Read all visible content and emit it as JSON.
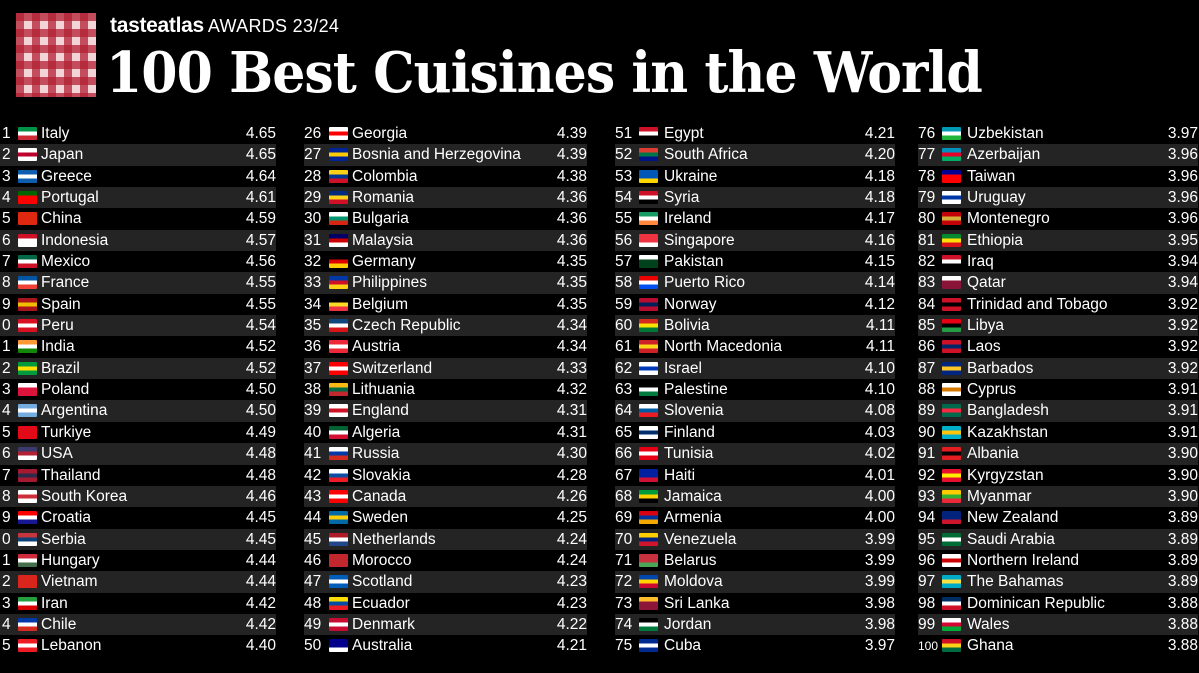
{
  "header": {
    "brand_name": "tasteatlas",
    "awards": "AWARDS 23/24",
    "title": "100 Best Cuisines in the World"
  },
  "columns": [
    [
      {
        "rank": "1",
        "country": "Italy",
        "score": "4.65",
        "flag": [
          "#009246",
          "#ffffff",
          "#ce2b37"
        ]
      },
      {
        "rank": "2",
        "country": "Japan",
        "score": "4.65",
        "flag": [
          "#ffffff",
          "#bc002d",
          "#ffffff"
        ]
      },
      {
        "rank": "3",
        "country": "Greece",
        "score": "4.64",
        "flag": [
          "#0d5eaf",
          "#ffffff",
          "#0d5eaf"
        ]
      },
      {
        "rank": "4",
        "country": "Portugal",
        "score": "4.61",
        "flag": [
          "#006600",
          "#ff0000",
          "#ff0000"
        ]
      },
      {
        "rank": "5",
        "country": "China",
        "score": "4.59",
        "flag": [
          "#de2910",
          "#de2910",
          "#de2910"
        ]
      },
      {
        "rank": "6",
        "country": "Indonesia",
        "score": "4.57",
        "flag": [
          "#ce1126",
          "#ffffff",
          "#ffffff"
        ]
      },
      {
        "rank": "7",
        "country": "Mexico",
        "score": "4.56",
        "flag": [
          "#006847",
          "#ffffff",
          "#ce1126"
        ]
      },
      {
        "rank": "8",
        "country": "France",
        "score": "4.55",
        "flag": [
          "#0055a4",
          "#ffffff",
          "#ef4135"
        ]
      },
      {
        "rank": "9",
        "country": "Spain",
        "score": "4.55",
        "flag": [
          "#aa151b",
          "#f1bf00",
          "#aa151b"
        ]
      },
      {
        "rank": "0",
        "country": "Peru",
        "score": "4.54",
        "flag": [
          "#d91023",
          "#ffffff",
          "#d91023"
        ]
      },
      {
        "rank": "1",
        "country": "India",
        "score": "4.52",
        "flag": [
          "#ff9933",
          "#ffffff",
          "#138808"
        ]
      },
      {
        "rank": "2",
        "country": "Brazil",
        "score": "4.52",
        "flag": [
          "#009c3b",
          "#ffdf00",
          "#009c3b"
        ]
      },
      {
        "rank": "3",
        "country": "Poland",
        "score": "4.50",
        "flag": [
          "#ffffff",
          "#dc143c",
          "#dc143c"
        ]
      },
      {
        "rank": "4",
        "country": "Argentina",
        "score": "4.50",
        "flag": [
          "#74acdf",
          "#ffffff",
          "#74acdf"
        ]
      },
      {
        "rank": "5",
        "country": "Turkiye",
        "score": "4.49",
        "flag": [
          "#e30a17",
          "#e30a17",
          "#e30a17"
        ]
      },
      {
        "rank": "6",
        "country": "USA",
        "score": "4.48",
        "flag": [
          "#3c3b6e",
          "#b22234",
          "#ffffff"
        ]
      },
      {
        "rank": "7",
        "country": "Thailand",
        "score": "4.48",
        "flag": [
          "#a51931",
          "#2d2a4a",
          "#a51931"
        ]
      },
      {
        "rank": "8",
        "country": "South Korea",
        "score": "4.46",
        "flag": [
          "#ffffff",
          "#cd2e3a",
          "#ffffff"
        ]
      },
      {
        "rank": "9",
        "country": "Croatia",
        "score": "4.45",
        "flag": [
          "#ff0000",
          "#ffffff",
          "#171796"
        ]
      },
      {
        "rank": "0",
        "country": "Serbia",
        "score": "4.45",
        "flag": [
          "#c6363c",
          "#0c4076",
          "#ffffff"
        ]
      },
      {
        "rank": "1",
        "country": "Hungary",
        "score": "4.44",
        "flag": [
          "#cd2a3e",
          "#ffffff",
          "#436f4d"
        ]
      },
      {
        "rank": "2",
        "country": "Vietnam",
        "score": "4.44",
        "flag": [
          "#da251d",
          "#da251d",
          "#da251d"
        ]
      },
      {
        "rank": "3",
        "country": "Iran",
        "score": "4.42",
        "flag": [
          "#239f40",
          "#ffffff",
          "#da0000"
        ]
      },
      {
        "rank": "4",
        "country": "Chile",
        "score": "4.42",
        "flag": [
          "#0039a6",
          "#ffffff",
          "#d52b1e"
        ]
      },
      {
        "rank": "5",
        "country": "Lebanon",
        "score": "4.40",
        "flag": [
          "#ed1c24",
          "#ffffff",
          "#ed1c24"
        ]
      }
    ],
    [
      {
        "rank": "26",
        "country": "Georgia",
        "score": "4.39",
        "flag": [
          "#ffffff",
          "#ff0000",
          "#ffffff"
        ]
      },
      {
        "rank": "27",
        "country": "Bosnia and Herzegovina",
        "score": "4.39",
        "flag": [
          "#002395",
          "#fecb00",
          "#002395"
        ]
      },
      {
        "rank": "28",
        "country": "Colombia",
        "score": "4.38",
        "flag": [
          "#fcd116",
          "#003893",
          "#ce1126"
        ]
      },
      {
        "rank": "29",
        "country": "Romania",
        "score": "4.36",
        "flag": [
          "#002b7f",
          "#fcd116",
          "#ce1126"
        ]
      },
      {
        "rank": "30",
        "country": "Bulgaria",
        "score": "4.36",
        "flag": [
          "#ffffff",
          "#00966e",
          "#d62612"
        ]
      },
      {
        "rank": "31",
        "country": "Malaysia",
        "score": "4.36",
        "flag": [
          "#010066",
          "#cc0001",
          "#ffffff"
        ]
      },
      {
        "rank": "32",
        "country": "Germany",
        "score": "4.35",
        "flag": [
          "#000000",
          "#dd0000",
          "#ffce00"
        ]
      },
      {
        "rank": "33",
        "country": "Philippines",
        "score": "4.35",
        "flag": [
          "#0038a8",
          "#ce1126",
          "#fcd116"
        ]
      },
      {
        "rank": "34",
        "country": "Belgium",
        "score": "4.35",
        "flag": [
          "#000000",
          "#fdda24",
          "#ef3340"
        ]
      },
      {
        "rank": "35",
        "country": "Czech Republic",
        "score": "4.34",
        "flag": [
          "#11457e",
          "#ffffff",
          "#d7141a"
        ]
      },
      {
        "rank": "36",
        "country": "Austria",
        "score": "4.34",
        "flag": [
          "#ed2939",
          "#ffffff",
          "#ed2939"
        ]
      },
      {
        "rank": "37",
        "country": "Switzerland",
        "score": "4.33",
        "flag": [
          "#ff0000",
          "#ffffff",
          "#ff0000"
        ]
      },
      {
        "rank": "38",
        "country": "Lithuania",
        "score": "4.32",
        "flag": [
          "#fdb913",
          "#006a44",
          "#c1272d"
        ]
      },
      {
        "rank": "39",
        "country": "England",
        "score": "4.31",
        "flag": [
          "#ffffff",
          "#ce1124",
          "#ffffff"
        ]
      },
      {
        "rank": "40",
        "country": "Algeria",
        "score": "4.31",
        "flag": [
          "#006233",
          "#ffffff",
          "#d21034"
        ]
      },
      {
        "rank": "41",
        "country": "Russia",
        "score": "4.30",
        "flag": [
          "#ffffff",
          "#0039a6",
          "#d52b1e"
        ]
      },
      {
        "rank": "42",
        "country": "Slovakia",
        "score": "4.28",
        "flag": [
          "#ffffff",
          "#0b4ea2",
          "#ee1c25"
        ]
      },
      {
        "rank": "43",
        "country": "Canada",
        "score": "4.26",
        "flag": [
          "#ff0000",
          "#ffffff",
          "#ff0000"
        ]
      },
      {
        "rank": "44",
        "country": "Sweden",
        "score": "4.25",
        "flag": [
          "#006aa7",
          "#fecc00",
          "#006aa7"
        ]
      },
      {
        "rank": "45",
        "country": "Netherlands",
        "score": "4.24",
        "flag": [
          "#ae1c28",
          "#ffffff",
          "#21468b"
        ]
      },
      {
        "rank": "46",
        "country": "Morocco",
        "score": "4.24",
        "flag": [
          "#c1272d",
          "#c1272d",
          "#c1272d"
        ]
      },
      {
        "rank": "47",
        "country": "Scotland",
        "score": "4.23",
        "flag": [
          "#005eb8",
          "#ffffff",
          "#005eb8"
        ]
      },
      {
        "rank": "48",
        "country": "Ecuador",
        "score": "4.23",
        "flag": [
          "#ffdd00",
          "#034ea2",
          "#ed1c24"
        ]
      },
      {
        "rank": "49",
        "country": "Denmark",
        "score": "4.22",
        "flag": [
          "#c60c30",
          "#ffffff",
          "#c60c30"
        ]
      },
      {
        "rank": "50",
        "country": "Australia",
        "score": "4.21",
        "flag": [
          "#00008b",
          "#00008b",
          "#ffffff"
        ]
      }
    ],
    [
      {
        "rank": "51",
        "country": "Egypt",
        "score": "4.21",
        "flag": [
          "#ce1126",
          "#ffffff",
          "#000000"
        ]
      },
      {
        "rank": "52",
        "country": "South Africa",
        "score": "4.20",
        "flag": [
          "#e03c31",
          "#007749",
          "#001489"
        ]
      },
      {
        "rank": "53",
        "country": "Ukraine",
        "score": "4.18",
        "flag": [
          "#0057b7",
          "#0057b7",
          "#ffd700"
        ]
      },
      {
        "rank": "54",
        "country": "Syria",
        "score": "4.18",
        "flag": [
          "#ce1126",
          "#ffffff",
          "#000000"
        ]
      },
      {
        "rank": "55",
        "country": "Ireland",
        "score": "4.17",
        "flag": [
          "#169b62",
          "#ffffff",
          "#ff883e"
        ]
      },
      {
        "rank": "56",
        "country": "Singapore",
        "score": "4.16",
        "flag": [
          "#ef3340",
          "#ef3340",
          "#ffffff"
        ]
      },
      {
        "rank": "57",
        "country": "Pakistan",
        "score": "4.15",
        "flag": [
          "#ffffff",
          "#01411c",
          "#01411c"
        ]
      },
      {
        "rank": "58",
        "country": "Puerto Rico",
        "score": "4.14",
        "flag": [
          "#ed0000",
          "#ffffff",
          "#0050f0"
        ]
      },
      {
        "rank": "59",
        "country": "Norway",
        "score": "4.12",
        "flag": [
          "#ba0c2f",
          "#00205b",
          "#ba0c2f"
        ]
      },
      {
        "rank": "60",
        "country": "Bolivia",
        "score": "4.11",
        "flag": [
          "#d52b1e",
          "#f9e300",
          "#007934"
        ]
      },
      {
        "rank": "61",
        "country": "North Macedonia",
        "score": "4.11",
        "flag": [
          "#ce2028",
          "#f9d616",
          "#ce2028"
        ]
      },
      {
        "rank": "62",
        "country": "Israel",
        "score": "4.10",
        "flag": [
          "#ffffff",
          "#0038b8",
          "#ffffff"
        ]
      },
      {
        "rank": "63",
        "country": "Palestine",
        "score": "4.10",
        "flag": [
          "#000000",
          "#ffffff",
          "#007a3d"
        ]
      },
      {
        "rank": "64",
        "country": "Slovenia",
        "score": "4.08",
        "flag": [
          "#ffffff",
          "#005da4",
          "#ed1c24"
        ]
      },
      {
        "rank": "65",
        "country": "Finland",
        "score": "4.03",
        "flag": [
          "#ffffff",
          "#002f6c",
          "#ffffff"
        ]
      },
      {
        "rank": "66",
        "country": "Tunisia",
        "score": "4.02",
        "flag": [
          "#e70013",
          "#ffffff",
          "#e70013"
        ]
      },
      {
        "rank": "67",
        "country": "Haiti",
        "score": "4.01",
        "flag": [
          "#00209f",
          "#00209f",
          "#d21034"
        ]
      },
      {
        "rank": "68",
        "country": "Jamaica",
        "score": "4.00",
        "flag": [
          "#009b3a",
          "#fed100",
          "#000000"
        ]
      },
      {
        "rank": "69",
        "country": "Armenia",
        "score": "4.00",
        "flag": [
          "#d90012",
          "#0033a0",
          "#f2a800"
        ]
      },
      {
        "rank": "70",
        "country": "Venezuela",
        "score": "3.99",
        "flag": [
          "#ffcc00",
          "#00247d",
          "#cf142b"
        ]
      },
      {
        "rank": "71",
        "country": "Belarus",
        "score": "3.99",
        "flag": [
          "#c8313e",
          "#c8313e",
          "#4aa657"
        ]
      },
      {
        "rank": "72",
        "country": "Moldova",
        "score": "3.99",
        "flag": [
          "#0046ae",
          "#ffd200",
          "#cc092f"
        ]
      },
      {
        "rank": "73",
        "country": "Sri Lanka",
        "score": "3.98",
        "flag": [
          "#ffbe29",
          "#8d153a",
          "#8d153a"
        ]
      },
      {
        "rank": "74",
        "country": "Jordan",
        "score": "3.98",
        "flag": [
          "#000000",
          "#ffffff",
          "#007a3d"
        ]
      },
      {
        "rank": "75",
        "country": "Cuba",
        "score": "3.97",
        "flag": [
          "#002a8f",
          "#ffffff",
          "#002a8f"
        ]
      }
    ],
    [
      {
        "rank": "76",
        "country": "Uzbekistan",
        "score": "3.97",
        "flag": [
          "#0099b5",
          "#ffffff",
          "#1eb53a"
        ]
      },
      {
        "rank": "77",
        "country": "Azerbaijan",
        "score": "3.96",
        "flag": [
          "#0092bc",
          "#e4002b",
          "#00af66"
        ]
      },
      {
        "rank": "78",
        "country": "Taiwan",
        "score": "3.96",
        "flag": [
          "#000095",
          "#fe0000",
          "#fe0000"
        ]
      },
      {
        "rank": "79",
        "country": "Uruguay",
        "score": "3.96",
        "flag": [
          "#ffffff",
          "#0038a8",
          "#ffffff"
        ]
      },
      {
        "rank": "80",
        "country": "Montenegro",
        "score": "3.96",
        "flag": [
          "#c40308",
          "#d3ae3b",
          "#c40308"
        ]
      },
      {
        "rank": "81",
        "country": "Ethiopia",
        "score": "3.95",
        "flag": [
          "#078930",
          "#fcdd09",
          "#da121a"
        ]
      },
      {
        "rank": "82",
        "country": "Iraq",
        "score": "3.94",
        "flag": [
          "#ce1126",
          "#ffffff",
          "#000000"
        ]
      },
      {
        "rank": "83",
        "country": "Qatar",
        "score": "3.94",
        "flag": [
          "#ffffff",
          "#8a1538",
          "#8a1538"
        ]
      },
      {
        "rank": "84",
        "country": "Trinidad and Tobago",
        "score": "3.92",
        "flag": [
          "#ce1126",
          "#000000",
          "#ce1126"
        ]
      },
      {
        "rank": "85",
        "country": "Libya",
        "score": "3.92",
        "flag": [
          "#e70013",
          "#000000",
          "#239e46"
        ]
      },
      {
        "rank": "86",
        "country": "Laos",
        "score": "3.92",
        "flag": [
          "#ce1126",
          "#002868",
          "#ce1126"
        ]
      },
      {
        "rank": "87",
        "country": "Barbados",
        "score": "3.92",
        "flag": [
          "#00267f",
          "#ffc726",
          "#00267f"
        ]
      },
      {
        "rank": "88",
        "country": "Cyprus",
        "score": "3.91",
        "flag": [
          "#ffffff",
          "#d57800",
          "#ffffff"
        ]
      },
      {
        "rank": "89",
        "country": "Bangladesh",
        "score": "3.91",
        "flag": [
          "#006a4e",
          "#f42a41",
          "#006a4e"
        ]
      },
      {
        "rank": "90",
        "country": "Kazakhstan",
        "score": "3.91",
        "flag": [
          "#00afca",
          "#fec50c",
          "#00afca"
        ]
      },
      {
        "rank": "91",
        "country": "Albania",
        "score": "3.90",
        "flag": [
          "#e41e20",
          "#000000",
          "#e41e20"
        ]
      },
      {
        "rank": "92",
        "country": "Kyrgyzstan",
        "score": "3.90",
        "flag": [
          "#e8112d",
          "#ffef00",
          "#e8112d"
        ]
      },
      {
        "rank": "93",
        "country": "Myanmar",
        "score": "3.90",
        "flag": [
          "#fecb00",
          "#34b233",
          "#ea2839"
        ]
      },
      {
        "rank": "94",
        "country": "New Zealand",
        "score": "3.89",
        "flag": [
          "#00247d",
          "#00247d",
          "#cc142b"
        ]
      },
      {
        "rank": "95",
        "country": "Saudi Arabia",
        "score": "3.89",
        "flag": [
          "#006c35",
          "#ffffff",
          "#006c35"
        ]
      },
      {
        "rank": "96",
        "country": "Northern Ireland",
        "score": "3.89",
        "flag": [
          "#ffffff",
          "#cc0000",
          "#ffffff"
        ]
      },
      {
        "rank": "97",
        "country": "The Bahamas",
        "score": "3.89",
        "flag": [
          "#00abc9",
          "#fae042",
          "#00abc9"
        ]
      },
      {
        "rank": "98",
        "country": "Dominican Republic",
        "score": "3.88",
        "flag": [
          "#002d62",
          "#ffffff",
          "#ce1126"
        ]
      },
      {
        "rank": "99",
        "country": "Wales",
        "score": "3.88",
        "flag": [
          "#ffffff",
          "#d30731",
          "#00ab39"
        ]
      },
      {
        "rank": "100",
        "country": "Ghana",
        "score": "3.88",
        "flag": [
          "#ce1126",
          "#fcd116",
          "#006b3f"
        ]
      }
    ]
  ]
}
